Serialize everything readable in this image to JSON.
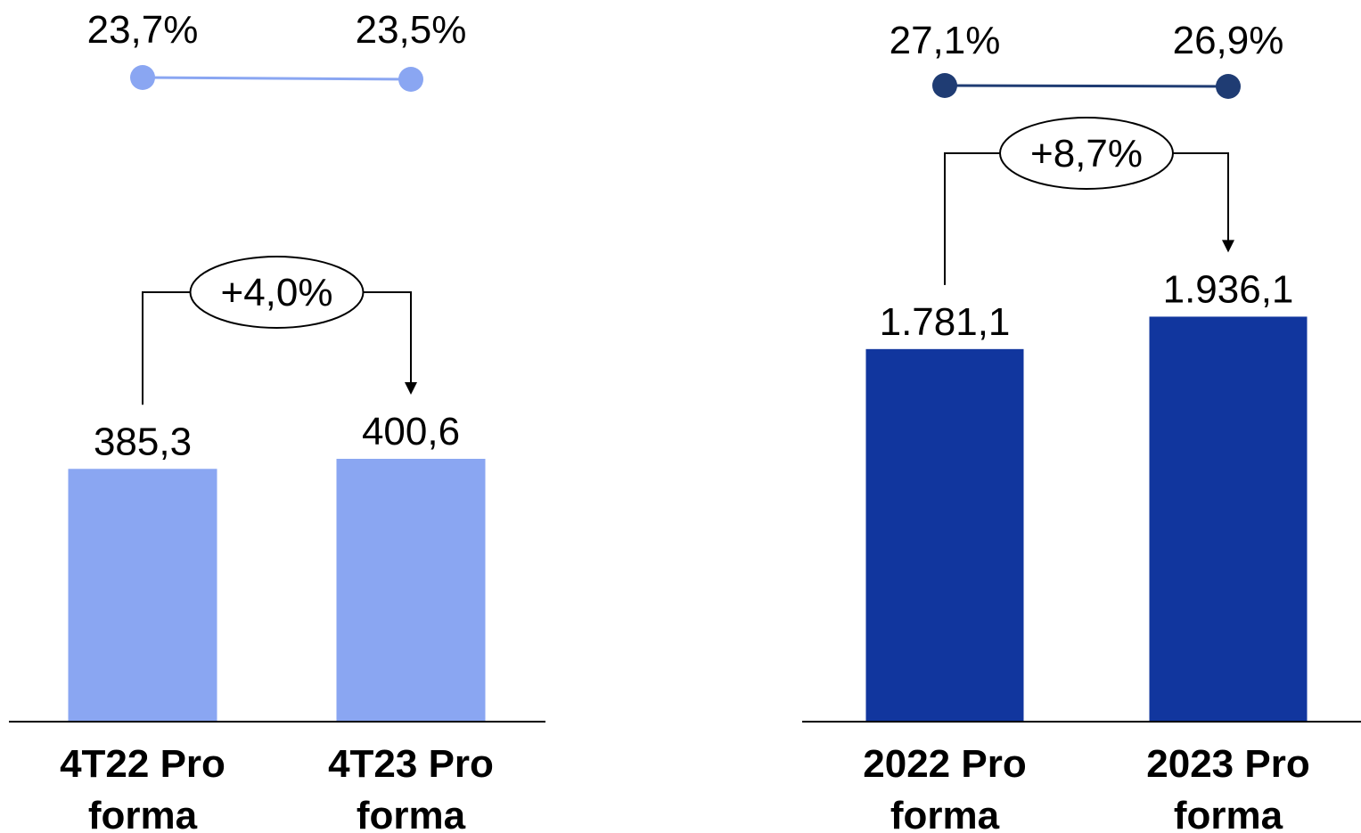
{
  "colors": {
    "left_bar": "#8aa6f2",
    "right_bar": "#11369e",
    "left_line": "#8aa6f2",
    "right_line": "#1f3c73"
  },
  "chart_data": [
    {
      "type": "bar",
      "categories": [
        [
          "4T22 Pro",
          "forma"
        ],
        [
          "4T23 Pro",
          "forma"
        ]
      ],
      "values": [
        385.3,
        400.6
      ],
      "value_labels": [
        "385,3",
        "400,6"
      ],
      "ylim": [
        0,
        1100
      ],
      "growth_label": "+4,0%",
      "margin_line": {
        "type": "line",
        "values": [
          23.7,
          23.5
        ],
        "value_labels": [
          "23,7%",
          "23,5%"
        ]
      }
    },
    {
      "type": "bar",
      "categories": [
        [
          "2022 Pro",
          "forma"
        ],
        [
          "2023 Pro",
          "forma"
        ]
      ],
      "values": [
        1781.1,
        1936.1
      ],
      "value_labels": [
        "1.781,1",
        "1.936,1"
      ],
      "ylim": [
        0,
        3450
      ],
      "growth_label": "+8,7%",
      "margin_line": {
        "type": "line",
        "values": [
          27.1,
          26.9
        ],
        "value_labels": [
          "27,1%",
          "26,9%"
        ]
      }
    }
  ]
}
